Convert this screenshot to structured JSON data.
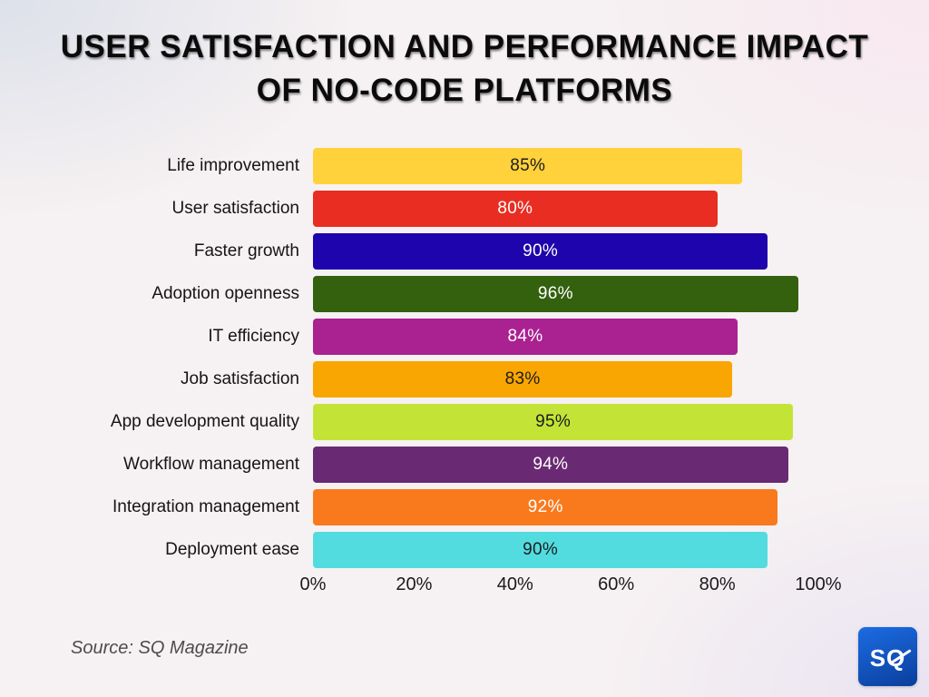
{
  "header": {
    "title_line1": "USER SATISFACTION AND PERFORMANCE IMPACT",
    "title_line2": "OF NO-CODE PLATFORMS"
  },
  "chart_data": {
    "type": "bar",
    "orientation": "horizontal",
    "title": "USER SATISFACTION AND PERFORMANCE IMPACT OF NO-CODE PLATFORMS",
    "categories": [
      "Life improvement",
      "User satisfaction",
      "Faster growth",
      "Adoption openness",
      "IT efficiency",
      "Job satisfaction",
      "App development quality",
      "Workflow management",
      "Integration management",
      "Deployment ease"
    ],
    "values": [
      85,
      80,
      90,
      96,
      84,
      83,
      95,
      94,
      92,
      90
    ],
    "value_labels": [
      "85%",
      "80%",
      "90%",
      "96%",
      "84%",
      "83%",
      "95%",
      "94%",
      "92%",
      "90%"
    ],
    "bar_colors": [
      "#FFD23B",
      "#E92D22",
      "#1D04AC",
      "#33610E",
      "#AA2191",
      "#F9A602",
      "#C3E437",
      "#6A2973",
      "#F87A1D",
      "#52DCDF"
    ],
    "value_text_colors": [
      "#1c1c1c",
      "#ffffff",
      "#ffffff",
      "#ffffff",
      "#ffffff",
      "#1c1c1c",
      "#1c1c1c",
      "#ffffff",
      "#ffffff",
      "#1c1c1c"
    ],
    "xlabel": "",
    "ylabel": "",
    "xlim": [
      0,
      100
    ],
    "x_tick_labels": [
      "0%",
      "20%",
      "40%",
      "60%",
      "80%",
      "100%"
    ],
    "x_tick_values": [
      0,
      20,
      40,
      60,
      80,
      100
    ],
    "grid": false,
    "legend": false
  },
  "footer": {
    "source": "Source: SQ Magazine",
    "logo_text": "SQ"
  }
}
